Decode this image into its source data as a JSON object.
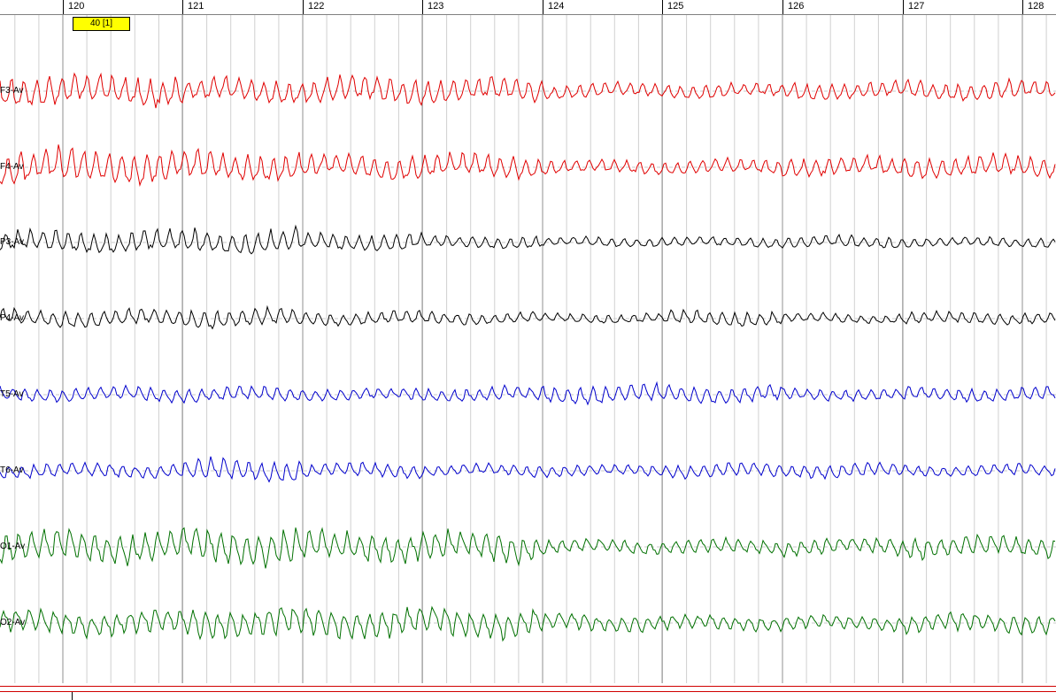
{
  "ruler": {
    "ticks": [
      "120",
      "121",
      "122",
      "123",
      "124",
      "125",
      "126",
      "127",
      "128"
    ]
  },
  "marker": {
    "label": "40 [1]"
  },
  "channels": [
    {
      "label": "F3-Av",
      "color": "#e00000"
    },
    {
      "label": "F4-Av",
      "color": "#e00000"
    },
    {
      "label": "P3-Av",
      "color": "#000000"
    },
    {
      "label": "P4-Av",
      "color": "#000000"
    },
    {
      "label": "T5-Av",
      "color": "#0000cc"
    },
    {
      "label": "T6-Av",
      "color": "#0000cc"
    },
    {
      "label": "O1-Av",
      "color": "#007000"
    },
    {
      "label": "O2-Av",
      "color": "#007000"
    }
  ]
}
